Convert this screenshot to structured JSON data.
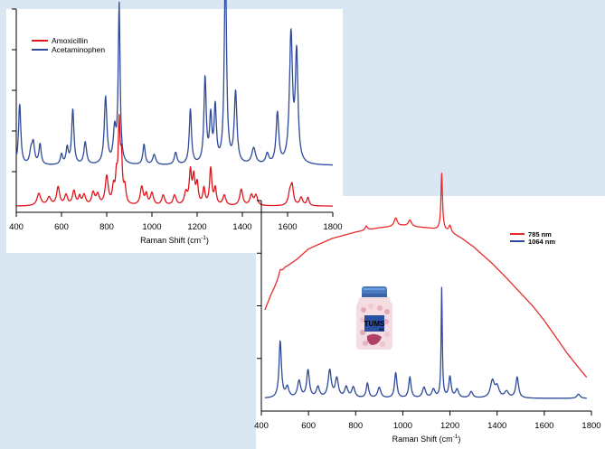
{
  "chart_data": [
    {
      "type": "line",
      "title": "",
      "xlabel": "Raman Shift (cm",
      "xlabel_sup": "-1",
      "xlabel_tail": ")",
      "ylabel": "",
      "xlim": [
        400,
        1800
      ],
      "ylim": [
        0,
        100
      ],
      "xticks": [
        "400",
        "600",
        "800",
        "1000",
        "1200",
        "1400",
        "1600",
        "1800"
      ],
      "grid": false,
      "legend_position": "top-left",
      "series": [
        {
          "name": "Amoxicillin",
          "color": "#e0151c",
          "baseline": 3,
          "peaks": [
            [
              500,
              6,
              10
            ],
            [
              545,
              4,
              10
            ],
            [
              585,
              9,
              8
            ],
            [
              620,
              5,
              8
            ],
            [
              655,
              7,
              8
            ],
            [
              680,
              4,
              6
            ],
            [
              700,
              5,
              8
            ],
            [
              740,
              6,
              8
            ],
            [
              760,
              5,
              8
            ],
            [
              800,
              14,
              8
            ],
            [
              830,
              8,
              6
            ],
            [
              843,
              12,
              5
            ],
            [
              855,
              38,
              5
            ],
            [
              865,
              20,
              5
            ],
            [
              880,
              8,
              6
            ],
            [
              955,
              9,
              8
            ],
            [
              975,
              5,
              6
            ],
            [
              1000,
              6,
              8
            ],
            [
              1050,
              5,
              8
            ],
            [
              1100,
              5,
              8
            ],
            [
              1150,
              6,
              8
            ],
            [
              1170,
              16,
              6
            ],
            [
              1185,
              13,
              6
            ],
            [
              1200,
              10,
              6
            ],
            [
              1230,
              8,
              6
            ],
            [
              1260,
              18,
              6
            ],
            [
              1280,
              8,
              6
            ],
            [
              1320,
              5,
              8
            ],
            [
              1395,
              8,
              8
            ],
            [
              1440,
              5,
              8
            ],
            [
              1460,
              5,
              8
            ],
            [
              1610,
              6,
              8
            ],
            [
              1620,
              9,
              7
            ],
            [
              1660,
              4,
              8
            ],
            [
              1690,
              4,
              6
            ]
          ]
        },
        {
          "name": "Acetaminophen",
          "color": "#2e4a9a",
          "baseline": 23,
          "peaks": [
            [
              415,
              30,
              6
            ],
            [
              465,
              6,
              7
            ],
            [
              475,
              10,
              7
            ],
            [
              505,
              10,
              6
            ],
            [
              600,
              5,
              6
            ],
            [
              625,
              8,
              6
            ],
            [
              650,
              27,
              6
            ],
            [
              705,
              11,
              7
            ],
            [
              795,
              33,
              7
            ],
            [
              835,
              16,
              7
            ],
            [
              855,
              78,
              5
            ],
            [
              965,
              10,
              6
            ],
            [
              1010,
              5,
              8
            ],
            [
              1105,
              6,
              7
            ],
            [
              1170,
              27,
              6
            ],
            [
              1235,
              42,
              6
            ],
            [
              1260,
              22,
              6
            ],
            [
              1280,
              27,
              6
            ],
            [
              1325,
              98,
              6
            ],
            [
              1370,
              35,
              7
            ],
            [
              1450,
              8,
              10
            ],
            [
              1510,
              5,
              8
            ],
            [
              1555,
              25,
              7
            ],
            [
              1615,
              63,
              8
            ],
            [
              1640,
              53,
              7
            ]
          ]
        }
      ]
    },
    {
      "type": "line",
      "title": "",
      "xlabel": "Raman Shift (cm",
      "xlabel_sup": "-1",
      "xlabel_tail": ")",
      "ylabel": "",
      "xlim": [
        400,
        1800
      ],
      "ylim": [
        0,
        100
      ],
      "xticks": [
        "400",
        "600",
        "800",
        "1000",
        "1200",
        "1400",
        "1600",
        "1800"
      ],
      "grid": false,
      "legend_position": "top-right",
      "series": [
        {
          "name": "785 nm",
          "color": "#e82a2a",
          "curve": [
            [
              415,
              48
            ],
            [
              440,
              55
            ],
            [
              470,
              62
            ],
            [
              500,
              68
            ],
            [
              550,
              72
            ],
            [
              600,
              77
            ],
            [
              700,
              82
            ],
            [
              800,
              85
            ],
            [
              900,
              87
            ],
            [
              1000,
              88
            ],
            [
              1100,
              87
            ],
            [
              1160,
              86
            ],
            [
              1200,
              85
            ],
            [
              1250,
              82
            ],
            [
              1300,
              78
            ],
            [
              1380,
              70
            ],
            [
              1450,
              62
            ],
            [
              1500,
              56
            ],
            [
              1550,
              50
            ],
            [
              1600,
              43
            ],
            [
              1650,
              35
            ],
            [
              1700,
              27
            ],
            [
              1750,
              20
            ],
            [
              1780,
              16
            ]
          ],
          "peaks": [
            [
              480,
              3,
              8
            ],
            [
              845,
              2,
              6
            ],
            [
              970,
              4,
              8
            ],
            [
              1030,
              3,
              8
            ],
            [
              1165,
              27,
              4
            ],
            [
              1200,
              3,
              6
            ]
          ]
        },
        {
          "name": "1064 nm",
          "color": "#2e4a9a",
          "baseline": 6,
          "peaks": [
            [
              480,
              27,
              6
            ],
            [
              510,
              5,
              8
            ],
            [
              560,
              8,
              8
            ],
            [
              598,
              13,
              7
            ],
            [
              640,
              5,
              8
            ],
            [
              690,
              13,
              8
            ],
            [
              720,
              9,
              8
            ],
            [
              760,
              5,
              8
            ],
            [
              790,
              5,
              8
            ],
            [
              850,
              7,
              6
            ],
            [
              900,
              5,
              8
            ],
            [
              970,
              12,
              6
            ],
            [
              1030,
              10,
              6
            ],
            [
              1090,
              5,
              8
            ],
            [
              1130,
              4,
              8
            ],
            [
              1165,
              52,
              3
            ],
            [
              1200,
              10,
              6
            ],
            [
              1230,
              4,
              8
            ],
            [
              1290,
              3,
              8
            ],
            [
              1380,
              8,
              10
            ],
            [
              1400,
              5,
              10
            ],
            [
              1440,
              3,
              10
            ],
            [
              1485,
              10,
              7
            ],
            [
              1745,
              2,
              8
            ]
          ]
        }
      ]
    }
  ],
  "inset_image": {
    "label": "TUMS",
    "sublabel": "EX"
  }
}
